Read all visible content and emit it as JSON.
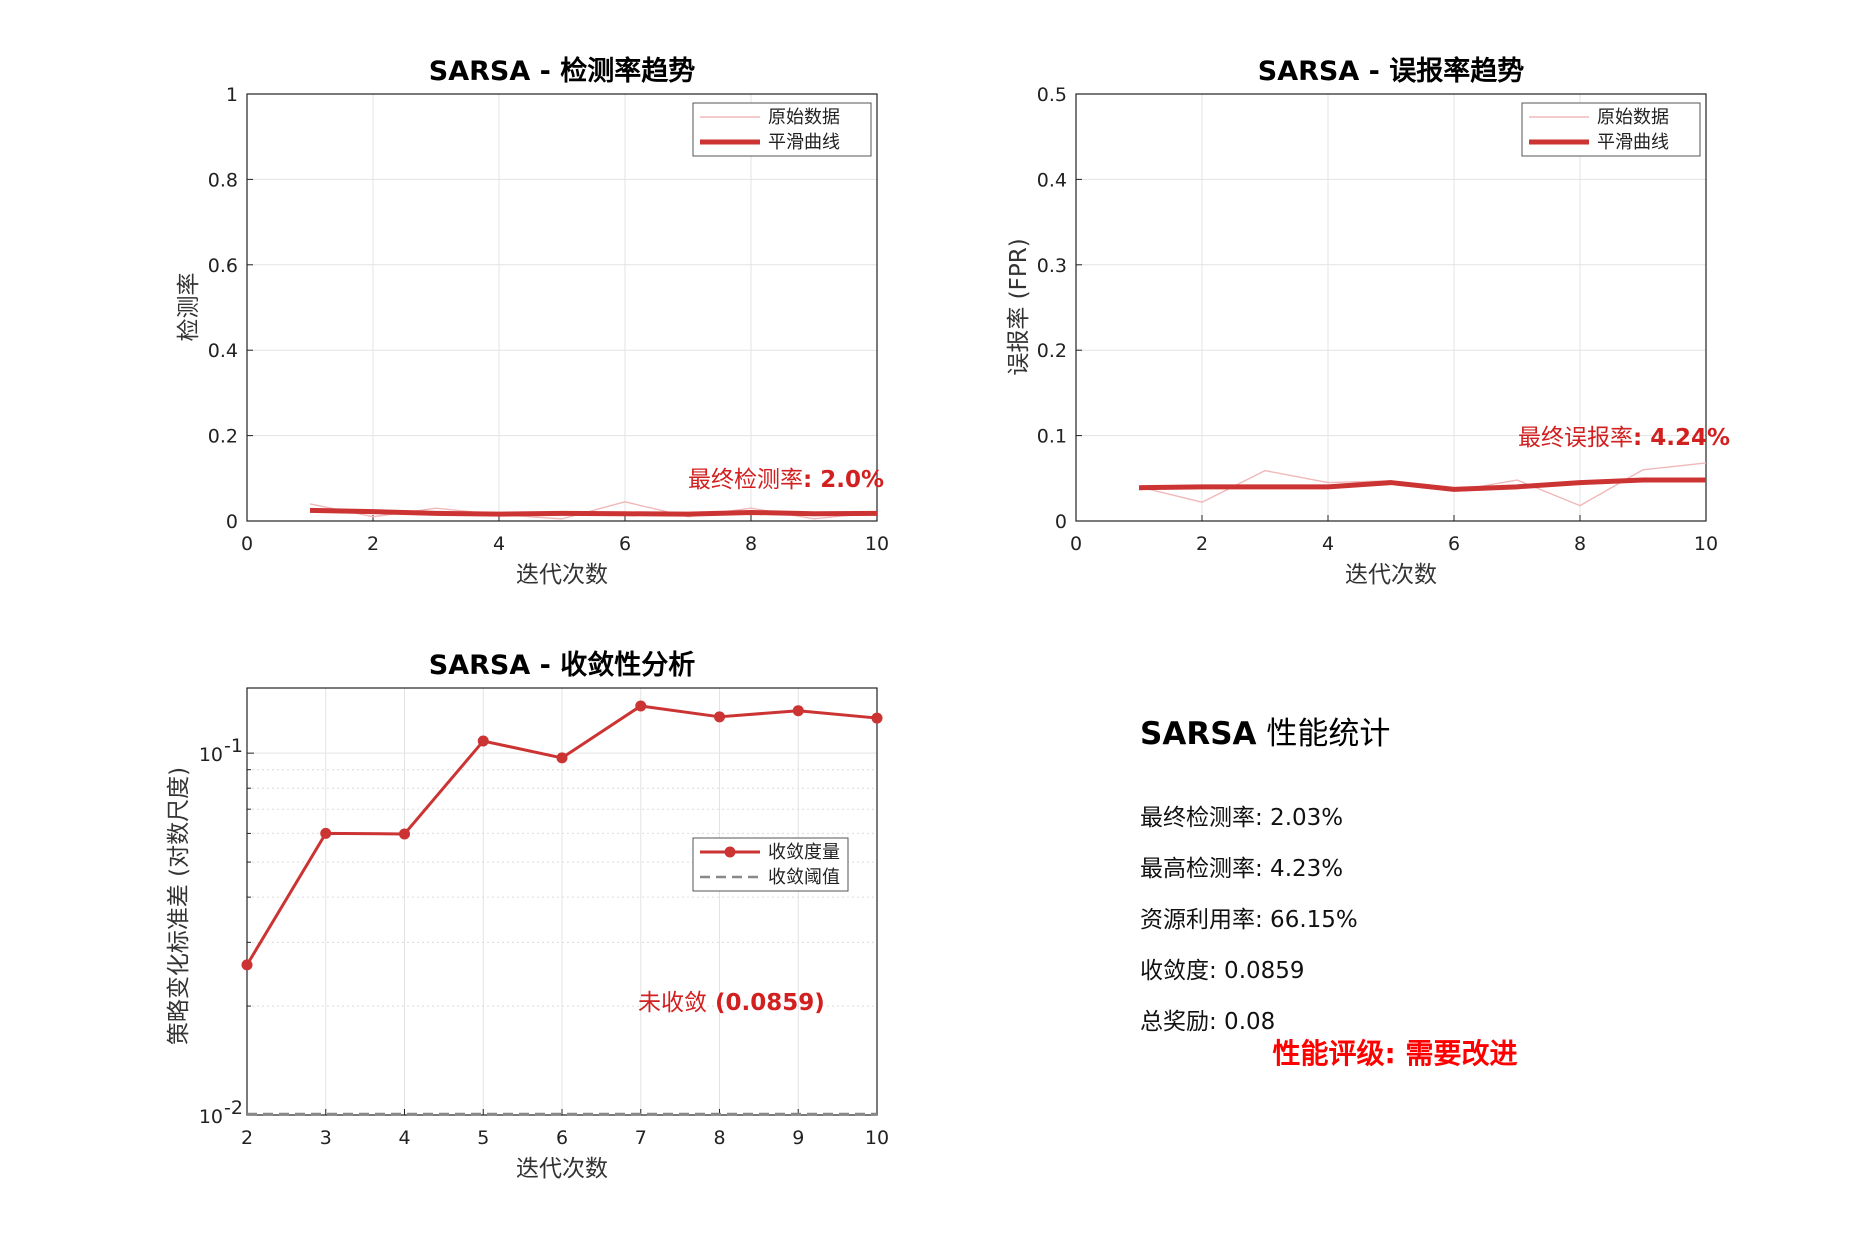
{
  "chart_data": [
    {
      "type": "line",
      "title": "SARSA - 检测率趋势",
      "xlabel": "迭代次数",
      "ylabel": "检测率",
      "xlim": [
        0,
        10
      ],
      "ylim": [
        0,
        1
      ],
      "xticks": [
        "0",
        "2",
        "4",
        "6",
        "8",
        "10"
      ],
      "yticks": [
        "0",
        "0.2",
        "0.4",
        "0.6",
        "0.8",
        "1"
      ],
      "grid": true,
      "legend_position": "top-right",
      "x": [
        1,
        2,
        3,
        4,
        5,
        6,
        7,
        8,
        9,
        10
      ],
      "series": [
        {
          "name": "原始数据",
          "color": "#f0b8b8",
          "values": [
            0.04,
            0.01,
            0.03,
            0.015,
            0.005,
            0.045,
            0.01,
            0.03,
            0.005,
            0.02
          ]
        },
        {
          "name": "平滑曲线",
          "color": "#cc3333",
          "values": [
            0.025,
            0.022,
            0.018,
            0.016,
            0.018,
            0.017,
            0.016,
            0.02,
            0.017,
            0.018
          ]
        }
      ],
      "annotation": {
        "prefix": "最终检测率",
        "value": ": 2.0%"
      }
    },
    {
      "type": "line",
      "title": "SARSA - 误报率趋势",
      "xlabel": "迭代次数",
      "ylabel": "误报率 (FPR)",
      "xlim": [
        0,
        10
      ],
      "ylim": [
        0,
        0.5
      ],
      "xticks": [
        "0",
        "2",
        "4",
        "6",
        "8",
        "10"
      ],
      "yticks": [
        "0",
        "0.1",
        "0.2",
        "0.3",
        "0.4",
        "0.5"
      ],
      "grid": true,
      "legend_position": "top-right",
      "x": [
        1,
        2,
        3,
        4,
        5,
        6,
        7,
        8,
        9,
        10
      ],
      "series": [
        {
          "name": "原始数据",
          "color": "#f0b8b8",
          "values": [
            0.04,
            0.022,
            0.059,
            0.045,
            0.047,
            0.035,
            0.048,
            0.018,
            0.06,
            0.068
          ]
        },
        {
          "name": "平滑曲线",
          "color": "#cc3333",
          "values": [
            0.039,
            0.04,
            0.04,
            0.04,
            0.045,
            0.037,
            0.04,
            0.045,
            0.048,
            0.048
          ]
        }
      ],
      "annotation": {
        "prefix": "最终误报率",
        "value": ": 4.24%"
      }
    },
    {
      "type": "line",
      "title": "SARSA - 收敛性分析",
      "xlabel": "迭代次数",
      "ylabel": "策略变化标准差 (对数尺度)",
      "xlim": [
        2,
        10
      ],
      "ylim_log10": [
        -2,
        -0.82
      ],
      "yscale": "log",
      "xticks": [
        "2",
        "3",
        "4",
        "5",
        "6",
        "7",
        "8",
        "9",
        "10"
      ],
      "yticks": [
        {
          "base": "10",
          "exp": "-1"
        },
        {
          "base": "10",
          "exp": "-2"
        }
      ],
      "grid": true,
      "legend_position": "right",
      "x": [
        2,
        3,
        4,
        5,
        6,
        7,
        8,
        9,
        10
      ],
      "series": [
        {
          "name": "收敛度量",
          "color": "#cc3333",
          "values": [
            0.026,
            0.06,
            0.0598,
            0.108,
            0.097,
            0.135,
            0.126,
            0.131,
            0.125
          ]
        },
        {
          "name": "收敛阈值",
          "color": "#888888",
          "values": [
            0.01,
            0.01,
            0.01,
            0.01,
            0.01,
            0.01,
            0.01,
            0.01,
            0.01
          ]
        }
      ],
      "annotation": {
        "prefix": "未收敛",
        "value": " (0.0859)"
      }
    }
  ],
  "stats": {
    "title_bold": "SARSA",
    "title_rest": " 性能统计",
    "lines": [
      {
        "label": "最终检测率",
        "value": ": 2.03%"
      },
      {
        "label": "最高检测率",
        "value": ": 4.23%"
      },
      {
        "label": "资源利用率",
        "value": ": 66.15%"
      },
      {
        "label": "收敛度",
        "value": ": 0.0859"
      },
      {
        "label": "总奖励",
        "value": ": 0.08"
      }
    ],
    "rating": "性能评级: 需要改进",
    "rating_color": "#ff0000"
  }
}
